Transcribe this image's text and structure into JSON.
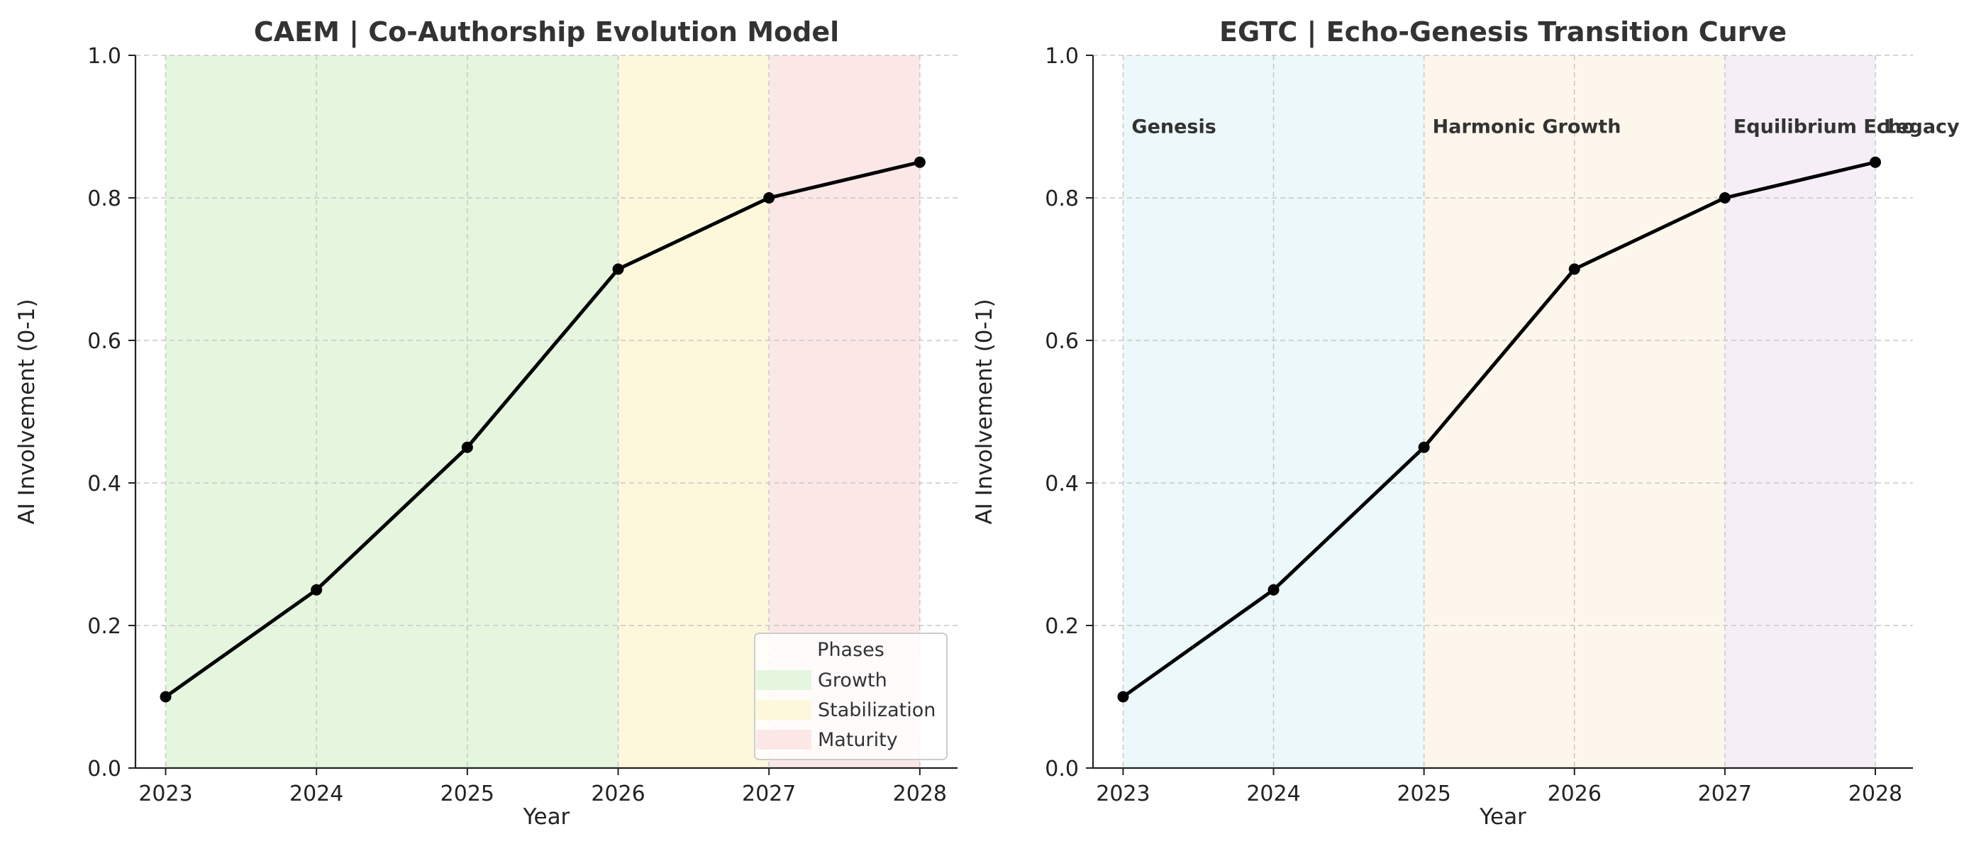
{
  "chart_data": [
    {
      "type": "line",
      "title": "CAEM | Co-Authorship Evolution Model",
      "xlabel": "Year",
      "ylabel": "AI Involvement (0-1)",
      "x": [
        2023,
        2024,
        2025,
        2026,
        2027,
        2028
      ],
      "series": [
        {
          "values": [
            0.1,
            0.25,
            0.45,
            0.7,
            0.8,
            0.85
          ],
          "color": "#000000"
        }
      ],
      "xlim": [
        2022.8,
        2028.25
      ],
      "ylim": [
        0,
        1
      ],
      "yticks": [
        "0.0",
        "0.2",
        "0.4",
        "0.6",
        "0.8",
        "1.0"
      ],
      "xticks": [
        "2023",
        "2024",
        "2025",
        "2026",
        "2027",
        "2028"
      ],
      "grid": true,
      "phases": [
        {
          "name": "Growth",
          "start": 2023,
          "end": 2026,
          "color": "#e5f5de"
        },
        {
          "name": "Stabilization",
          "start": 2026,
          "end": 2027,
          "color": "#fdf8dc"
        },
        {
          "name": "Maturity",
          "start": 2027,
          "end": 2028,
          "color": "#fce7e7"
        }
      ],
      "legend": {
        "title": "Phases",
        "placement": "lower-right"
      }
    },
    {
      "type": "line",
      "title": "EGTC | Echo-Genesis Transition Curve",
      "xlabel": "Year",
      "ylabel": "AI Involvement (0-1)",
      "x": [
        2023,
        2024,
        2025,
        2026,
        2027,
        2028
      ],
      "series": [
        {
          "values": [
            0.1,
            0.25,
            0.45,
            0.7,
            0.8,
            0.85
          ],
          "color": "#000000"
        }
      ],
      "xlim": [
        2022.8,
        2028.25
      ],
      "ylim": [
        0,
        1
      ],
      "yticks": [
        "0.0",
        "0.2",
        "0.4",
        "0.6",
        "0.8",
        "1.0"
      ],
      "xticks": [
        "2023",
        "2024",
        "2025",
        "2026",
        "2027",
        "2028"
      ],
      "grid": true,
      "phases": [
        {
          "name": "Genesis",
          "start": 2023,
          "end": 2025,
          "color": "#ecf8f9"
        },
        {
          "name": "Harmonic Growth",
          "start": 2025,
          "end": 2027,
          "color": "#fdf6ec"
        },
        {
          "name": "Equilibrium Echo",
          "start": 2027,
          "end": 2028,
          "color": "#f5eef7"
        },
        {
          "name": "Legacy",
          "start": 2028,
          "end": 2028,
          "color": "#ffffff"
        }
      ],
      "phase_label_y": 0.9
    }
  ]
}
